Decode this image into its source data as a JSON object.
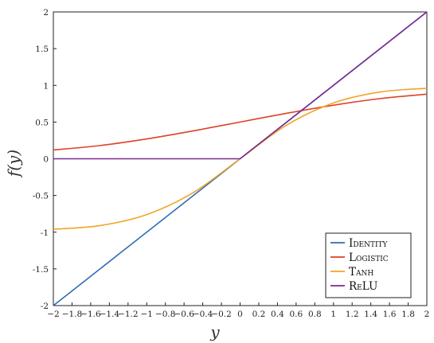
{
  "chart_data": {
    "type": "line",
    "xlabel": "y",
    "ylabel": "f(y)",
    "xlim": [
      -2,
      2
    ],
    "ylim": [
      -2,
      2
    ],
    "x_ticks": [
      "−2",
      "−1.8",
      "−1.6",
      "−1.4",
      "−1.2",
      "−1",
      "−0.8",
      "−0.6",
      "−0.4",
      "−0.2",
      "0",
      "0.2",
      "0.4",
      "0.6",
      "0.8",
      "1",
      "1.2",
      "1.4",
      "1.6",
      "1.8",
      "2"
    ],
    "x_tick_values": [
      -2,
      -1.8,
      -1.6,
      -1.4,
      -1.2,
      -1,
      -0.8,
      -0.6,
      -0.4,
      -0.2,
      0,
      0.2,
      0.4,
      0.6,
      0.8,
      1,
      1.2,
      1.4,
      1.6,
      1.8,
      2
    ],
    "y_ticks": [
      "2",
      "1.5",
      "1",
      "0.5",
      "0",
      "-0.5",
      "-1",
      "-1.5",
      "-2"
    ],
    "y_tick_values": [
      2,
      1.5,
      1,
      0.5,
      0,
      -0.5,
      -1,
      -1.5,
      -2
    ],
    "grid": false,
    "legend_position": "bottom-right",
    "series": [
      {
        "name": "Identity",
        "color": "#2f6db5",
        "x": [
          -2,
          -1.5,
          -1,
          -0.5,
          0,
          0.5,
          1,
          1.5,
          2
        ],
        "values": [
          -2,
          -1.5,
          -1,
          -0.5,
          0,
          0.5,
          1,
          1.5,
          2
        ]
      },
      {
        "name": "Logistic",
        "color": "#e0412a",
        "x": [
          -2,
          -1.5,
          -1,
          -0.5,
          0,
          0.5,
          1,
          1.5,
          2
        ],
        "values": [
          0.12,
          0.18,
          0.27,
          0.38,
          0.5,
          0.62,
          0.73,
          0.82,
          0.88
        ]
      },
      {
        "name": "Tanh",
        "color": "#f0a528",
        "x": [
          -2,
          -1.5,
          -1,
          -0.5,
          0,
          0.5,
          1,
          1.5,
          2
        ],
        "values": [
          -0.96,
          -0.91,
          -0.76,
          -0.46,
          0,
          0.46,
          0.76,
          0.91,
          0.96
        ]
      },
      {
        "name": "ReLU",
        "color": "#7b2a90",
        "x": [
          -2,
          -1.5,
          -1,
          -0.5,
          0,
          0.5,
          1,
          1.5,
          2
        ],
        "values": [
          0,
          0,
          0,
          0,
          0,
          0.5,
          1,
          1.5,
          2
        ]
      }
    ]
  }
}
